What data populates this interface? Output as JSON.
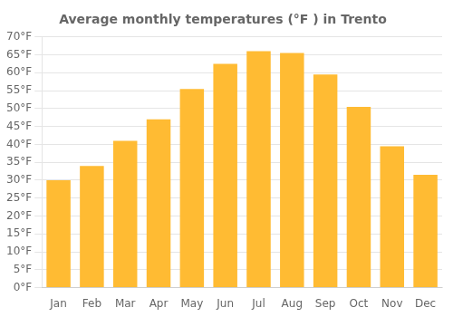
{
  "chart_data": {
    "type": "bar",
    "title": "Average monthly temperatures (°F ) in Trento",
    "categories": [
      "Jan",
      "Feb",
      "Mar",
      "Apr",
      "May",
      "Jun",
      "Jul",
      "Aug",
      "Sep",
      "Oct",
      "Nov",
      "Dec"
    ],
    "values": [
      30,
      34,
      41,
      47,
      55.5,
      62.5,
      66,
      65.5,
      59.5,
      50.5,
      39.5,
      31.5
    ],
    "color": "#FFBB33",
    "ylim": [
      0,
      70
    ],
    "yticks": [
      {
        "value": 0,
        "label": "0°F"
      },
      {
        "value": 5,
        "label": "5°F"
      },
      {
        "value": 10,
        "label": "10°F"
      },
      {
        "value": 15,
        "label": "15°F"
      },
      {
        "value": 20,
        "label": "20°F"
      },
      {
        "value": 25,
        "label": "25°F"
      },
      {
        "value": 30,
        "label": "30°F"
      },
      {
        "value": 35,
        "label": "35°F"
      },
      {
        "value": 40,
        "label": "40°F"
      },
      {
        "value": 45,
        "label": "45°F"
      },
      {
        "value": 50,
        "label": "50°F"
      },
      {
        "value": 55,
        "label": "55°F"
      },
      {
        "value": 60,
        "label": "60°F"
      },
      {
        "value": 65,
        "label": "65°F"
      },
      {
        "value": 70,
        "label": "70°F"
      }
    ],
    "grid": true
  }
}
